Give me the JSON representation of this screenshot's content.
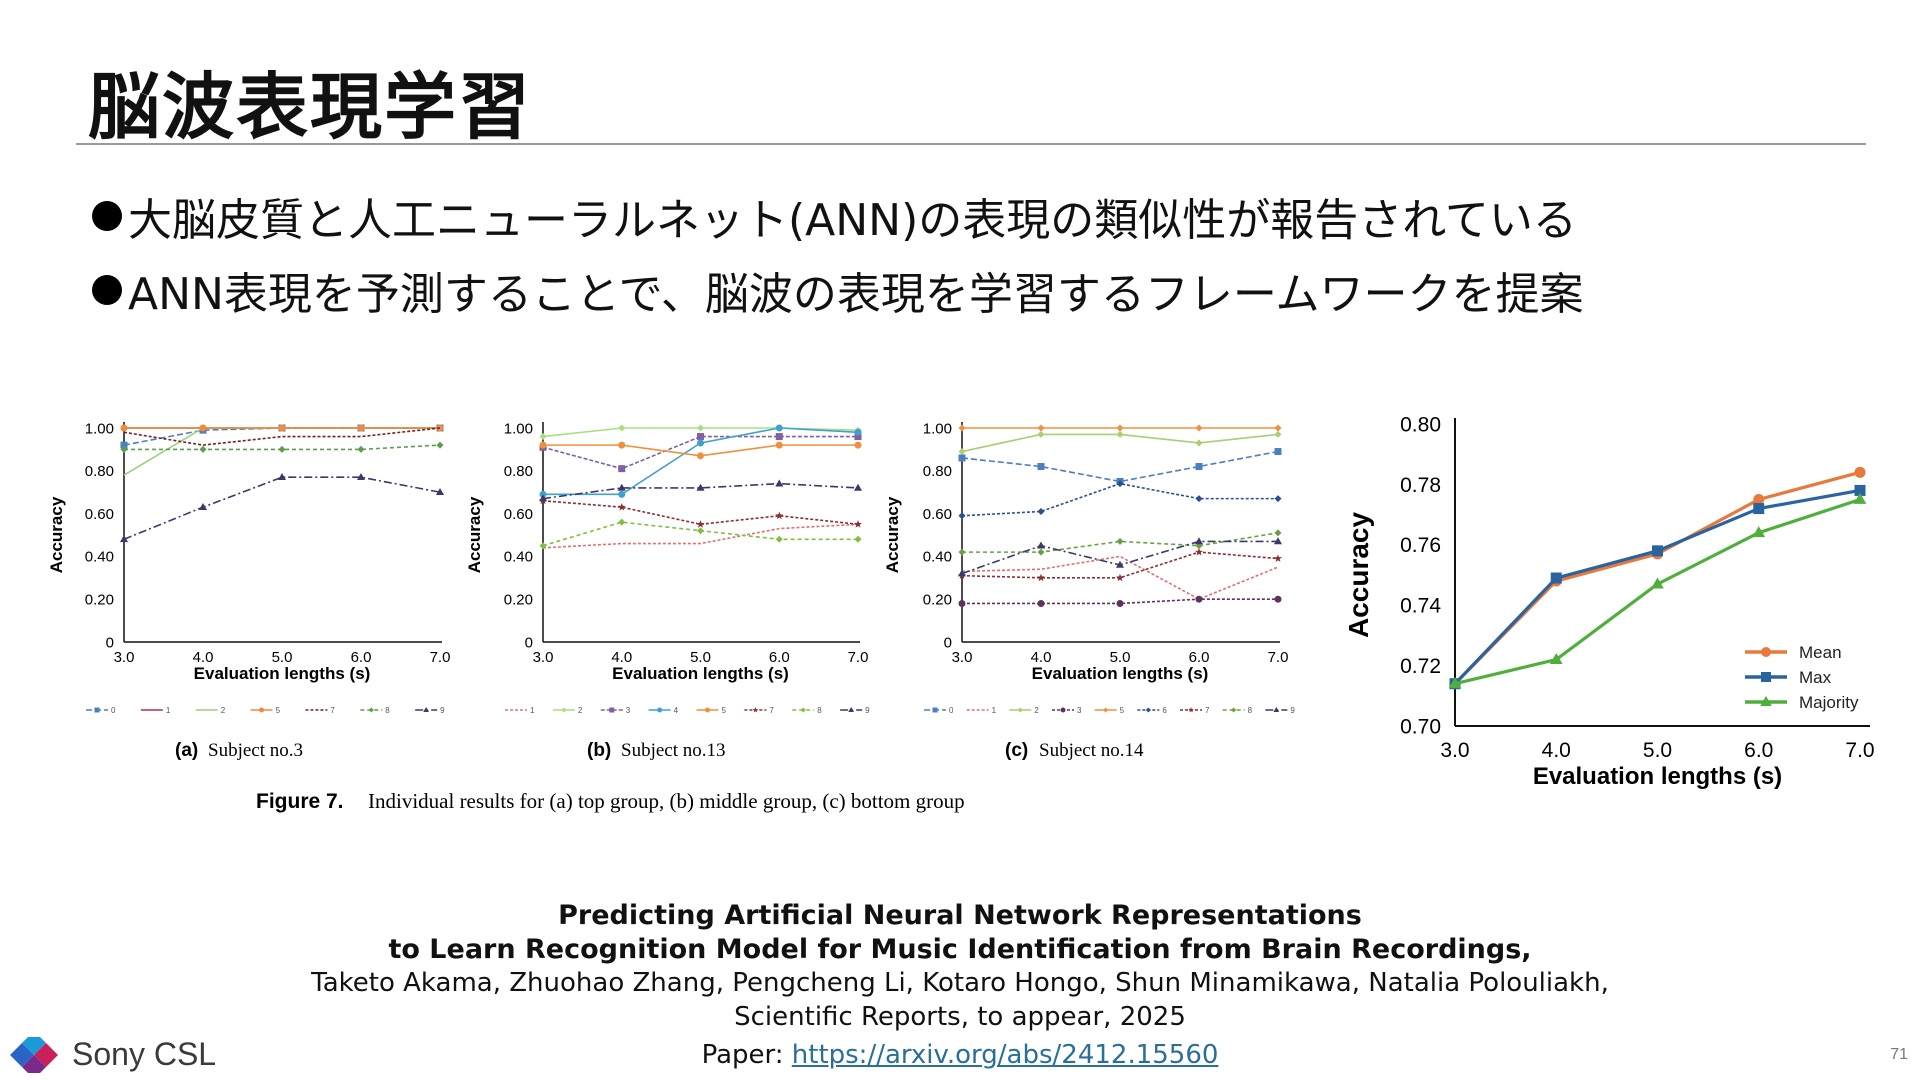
{
  "slide": {
    "title": "脳波表現学習",
    "bullets": [
      "大脳皮質と人工ニューラルネット(ANN)の表現の類似性が報告されている",
      "ANN表現を予測することで、脳波の表現を学習するフレームワークを提案"
    ],
    "page_number": "71",
    "brand": "Sony CSL"
  },
  "figure": {
    "caption_label": "Figure 7.",
    "caption_text": "Individual results for (a) top group, (b) middle group, (c) bottom group",
    "panels": [
      {
        "label": "(a)",
        "subject": "Subject no.3"
      },
      {
        "label": "(b)",
        "subject": "Subject no.13"
      },
      {
        "label": "(c)",
        "subject": "Subject no.14"
      }
    ]
  },
  "reference": {
    "title_line1": "Predicting Artificial Neural Network Representations",
    "title_line2": "to Learn Recognition Model for Music Identification from Brain Recordings,",
    "authors": "Taketo Akama, Zhuohao Zhang, Pengcheng Li, Kotaro Hongo, Shun Minamikawa, Natalia Polouliakh,",
    "journal": "Scientific Reports, to appear, 2025",
    "paper_label": "Paper: ",
    "paper_url": "https://arxiv.org/abs/2412.15560"
  },
  "chart_data": [
    {
      "type": "line",
      "ylabel": "Accuracy",
      "xlabel": "Evaluation lengths (s)",
      "x": [
        3.0,
        4.0,
        5.0,
        6.0,
        7.0
      ],
      "x_ticks": [
        "3.0",
        "4.0",
        "5.0",
        "6.0",
        "7.0"
      ],
      "y_ticks": [
        "0",
        "0.20",
        "0.40",
        "0.60",
        "0.80",
        "1.00"
      ],
      "ylim": [
        0,
        1.0
      ],
      "legend_position": "bottom",
      "series": [
        {
          "name": "0",
          "color": "#4a7fc0",
          "dash": "6 3",
          "marker": "s",
          "values": [
            0.92,
            0.99,
            1.0,
            1.0,
            1.0
          ]
        },
        {
          "name": "1",
          "color": "#b03040",
          "dash": "",
          "marker": "none",
          "values": [
            1.0,
            1.0,
            1.0,
            1.0,
            1.0
          ]
        },
        {
          "name": "2",
          "color": "#9ccf7a",
          "dash": "",
          "marker": "none",
          "values": [
            0.78,
            1.0,
            1.0,
            1.0,
            1.0
          ]
        },
        {
          "name": "5",
          "color": "#f08a3c",
          "dash": "",
          "marker": "o",
          "values": [
            1.0,
            1.0,
            1.0,
            1.0,
            1.0
          ]
        },
        {
          "name": "7",
          "color": "#7a2020",
          "dash": "3 2",
          "marker": "none",
          "values": [
            0.98,
            0.92,
            0.96,
            0.96,
            1.0
          ]
        },
        {
          "name": "8",
          "color": "#5aa04a",
          "dash": "4 3",
          "marker": "d",
          "values": [
            0.9,
            0.9,
            0.9,
            0.9,
            0.92
          ]
        },
        {
          "name": "9",
          "color": "#3a3a6a",
          "dash": "8 3 2 3",
          "marker": "^",
          "values": [
            0.48,
            0.63,
            0.77,
            0.77,
            0.7
          ]
        }
      ]
    },
    {
      "type": "line",
      "ylabel": "Accuracy",
      "xlabel": "Evaluation lengths (s)",
      "x": [
        3.0,
        4.0,
        5.0,
        6.0,
        7.0
      ],
      "x_ticks": [
        "3.0",
        "4.0",
        "5.0",
        "6.0",
        "7.0"
      ],
      "y_ticks": [
        "0",
        "0.20",
        "0.40",
        "0.60",
        "0.80",
        "1.00"
      ],
      "ylim": [
        0,
        1.0
      ],
      "legend_position": "bottom",
      "series": [
        {
          "name": "1",
          "color": "#e07070",
          "dash": "3 2",
          "marker": "none",
          "values": [
            0.44,
            0.46,
            0.46,
            0.53,
            0.55
          ]
        },
        {
          "name": "2",
          "color": "#a8df80",
          "dash": "",
          "marker": "d",
          "values": [
            0.96,
            1.0,
            1.0,
            1.0,
            0.99
          ]
        },
        {
          "name": "3",
          "color": "#8060a0",
          "dash": "4 2",
          "marker": "s",
          "values": [
            0.91,
            0.81,
            0.96,
            0.96,
            0.96
          ]
        },
        {
          "name": "4",
          "color": "#40a0d0",
          "dash": "",
          "marker": "o",
          "values": [
            0.69,
            0.69,
            0.93,
            1.0,
            0.98
          ]
        },
        {
          "name": "5",
          "color": "#f0903c",
          "dash": "",
          "marker": "o",
          "values": [
            0.92,
            0.92,
            0.87,
            0.92,
            0.92
          ]
        },
        {
          "name": "7",
          "color": "#8a3030",
          "dash": "3 2",
          "marker": "*",
          "values": [
            0.66,
            0.63,
            0.55,
            0.59,
            0.55
          ]
        },
        {
          "name": "8",
          "color": "#80c040",
          "dash": "4 3",
          "marker": "d",
          "values": [
            0.45,
            0.56,
            0.52,
            0.48,
            0.48
          ]
        },
        {
          "name": "9",
          "color": "#3a3a6a",
          "dash": "8 3 2 3",
          "marker": "^",
          "values": [
            0.67,
            0.72,
            0.72,
            0.74,
            0.72
          ]
        }
      ]
    },
    {
      "type": "line",
      "ylabel": "Accuracy",
      "xlabel": "Evaluation lengths (s)",
      "x": [
        3.0,
        4.0,
        5.0,
        6.0,
        7.0
      ],
      "x_ticks": [
        "3.0",
        "4.0",
        "5.0",
        "6.0",
        "7.0"
      ],
      "y_ticks": [
        "0",
        "0.20",
        "0.40",
        "0.60",
        "0.80",
        "1.00"
      ],
      "ylim": [
        0,
        1.0
      ],
      "legend_position": "bottom",
      "series": [
        {
          "name": "0",
          "color": "#4a7fc0",
          "dash": "6 3",
          "marker": "s",
          "values": [
            0.86,
            0.82,
            0.75,
            0.82,
            0.89
          ]
        },
        {
          "name": "1",
          "color": "#e07070",
          "dash": "3 2",
          "marker": "none",
          "values": [
            0.33,
            0.34,
            0.4,
            0.2,
            0.35
          ]
        },
        {
          "name": "2",
          "color": "#a8cf70",
          "dash": "",
          "marker": "d",
          "values": [
            0.89,
            0.97,
            0.97,
            0.93,
            0.97
          ]
        },
        {
          "name": "3",
          "color": "#603060",
          "dash": "3 2",
          "marker": "o",
          "values": [
            0.18,
            0.18,
            0.18,
            0.2,
            0.2
          ]
        },
        {
          "name": "5",
          "color": "#f09040",
          "dash": "",
          "marker": "d",
          "values": [
            1.0,
            1.0,
            1.0,
            1.0,
            1.0
          ]
        },
        {
          "name": "6",
          "color": "#2a5090",
          "dash": "3 2",
          "marker": "d",
          "values": [
            0.59,
            0.61,
            0.74,
            0.67,
            0.67
          ]
        },
        {
          "name": "7",
          "color": "#8a3030",
          "dash": "3 2",
          "marker": "*",
          "values": [
            0.31,
            0.3,
            0.3,
            0.42,
            0.39
          ]
        },
        {
          "name": "8",
          "color": "#6aa040",
          "dash": "4 3",
          "marker": "d",
          "values": [
            0.42,
            0.42,
            0.47,
            0.45,
            0.51
          ]
        },
        {
          "name": "9",
          "color": "#3a3a6a",
          "dash": "8 3 2 3",
          "marker": "^",
          "values": [
            0.32,
            0.45,
            0.36,
            0.47,
            0.47
          ]
        }
      ]
    },
    {
      "type": "line",
      "ylabel": "Accuracy",
      "xlabel": "Evaluation lengths (s)",
      "x": [
        3.0,
        4.0,
        5.0,
        6.0,
        7.0
      ],
      "x_ticks": [
        "3.0",
        "4.0",
        "5.0",
        "6.0",
        "7.0"
      ],
      "y_ticks": [
        "0.70",
        "0.72",
        "0.74",
        "0.76",
        "0.78",
        "0.80"
      ],
      "ylim": [
        0.7,
        0.8
      ],
      "legend_position": "bottom-right",
      "series": [
        {
          "name": "Mean",
          "color": "#e8783c",
          "dash": "",
          "marker": "o",
          "values": [
            0.714,
            0.748,
            0.757,
            0.775,
            0.784
          ]
        },
        {
          "name": "Max",
          "color": "#2a64a0",
          "dash": "",
          "marker": "s",
          "values": [
            0.714,
            0.749,
            0.758,
            0.772,
            0.778
          ]
        },
        {
          "name": "Majority",
          "color": "#4fae3c",
          "dash": "",
          "marker": "^",
          "values": [
            0.714,
            0.722,
            0.747,
            0.764,
            0.775
          ]
        }
      ]
    }
  ]
}
